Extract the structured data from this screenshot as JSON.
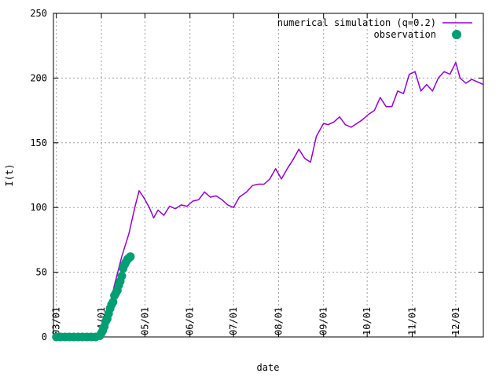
{
  "chart_data": {
    "type": "line",
    "xlabel": "date",
    "ylabel": "I(t)",
    "ylim": [
      0,
      250
    ],
    "xlim": [
      "2020-02-28",
      "2020-12-20"
    ],
    "grid": true,
    "legend_position": "top-right",
    "y_ticks": [
      0,
      50,
      100,
      150,
      200,
      250
    ],
    "x_ticks": [
      {
        "date": "2020-03-01",
        "label": "03/01"
      },
      {
        "date": "2020-04-01",
        "label": "04/01"
      },
      {
        "date": "2020-05-01",
        "label": "05/01"
      },
      {
        "date": "2020-06-01",
        "label": "06/01"
      },
      {
        "date": "2020-07-01",
        "label": "07/01"
      },
      {
        "date": "2020-08-01",
        "label": "08/01"
      },
      {
        "date": "2020-09-01",
        "label": "09/01"
      },
      {
        "date": "2020-10-01",
        "label": "10/01"
      },
      {
        "date": "2020-11-01",
        "label": "11/01"
      },
      {
        "date": "2020-12-01",
        "label": "12/01"
      }
    ],
    "series": [
      {
        "name": "numerical simulation (q=0.2)",
        "style": "line",
        "color": "#9400d3",
        "x": [
          "2020-02-28",
          "2020-03-31",
          "2020-04-05",
          "2020-04-10",
          "2020-04-15",
          "2020-04-20",
          "2020-04-24",
          "2020-04-27",
          "2020-04-30",
          "2020-05-04",
          "2020-05-07",
          "2020-05-10",
          "2020-05-14",
          "2020-05-18",
          "2020-05-22",
          "2020-05-26",
          "2020-05-30",
          "2020-06-03",
          "2020-06-07",
          "2020-06-11",
          "2020-06-15",
          "2020-06-19",
          "2020-06-23",
          "2020-06-27",
          "2020-07-01",
          "2020-07-05",
          "2020-07-10",
          "2020-07-14",
          "2020-07-18",
          "2020-07-22",
          "2020-07-26",
          "2020-07-30",
          "2020-08-03",
          "2020-08-07",
          "2020-08-11",
          "2020-08-15",
          "2020-08-19",
          "2020-08-23",
          "2020-08-27",
          "2020-09-01",
          "2020-09-04",
          "2020-09-08",
          "2020-09-12",
          "2020-09-16",
          "2020-09-20",
          "2020-09-24",
          "2020-09-28",
          "2020-10-02",
          "2020-10-06",
          "2020-10-10",
          "2020-10-14",
          "2020-10-18",
          "2020-10-22",
          "2020-10-26",
          "2020-10-30",
          "2020-11-03",
          "2020-11-07",
          "2020-11-11",
          "2020-11-15",
          "2020-11-19",
          "2020-11-23",
          "2020-11-27",
          "2020-12-01",
          "2020-12-04",
          "2020-12-08",
          "2020-12-12",
          "2020-12-16",
          "2020-12-20"
        ],
        "y": [
          0,
          0,
          15,
          40,
          62,
          80,
          100,
          113,
          108,
          100,
          92,
          98,
          94,
          101,
          99,
          102,
          101,
          105,
          106,
          112,
          108,
          109,
          106,
          102,
          100,
          108,
          112,
          117,
          118,
          118,
          122,
          130,
          122,
          130,
          137,
          145,
          138,
          135,
          155,
          165,
          164,
          166,
          170,
          164,
          162,
          165,
          168,
          172,
          175,
          185,
          178,
          178,
          190,
          188,
          203,
          205,
          190,
          195,
          190,
          200,
          205,
          203,
          212,
          200,
          196,
          199,
          197,
          195
        ]
      },
      {
        "name": "observation",
        "style": "points",
        "color": "#009e73",
        "x": [
          "2020-03-01",
          "2020-03-04",
          "2020-03-07",
          "2020-03-10",
          "2020-03-13",
          "2020-03-16",
          "2020-03-19",
          "2020-03-22",
          "2020-03-25",
          "2020-03-28",
          "2020-03-31",
          "2020-04-01",
          "2020-04-02",
          "2020-04-03",
          "2020-04-04",
          "2020-04-05",
          "2020-04-06",
          "2020-04-07",
          "2020-04-08",
          "2020-04-09",
          "2020-04-10",
          "2020-04-11",
          "2020-04-12",
          "2020-04-13",
          "2020-04-14",
          "2020-04-15",
          "2020-04-16",
          "2020-04-17",
          "2020-04-18",
          "2020-04-19",
          "2020-04-20",
          "2020-04-21"
        ],
        "y": [
          0,
          0,
          0,
          0,
          0,
          0,
          0,
          0,
          0,
          0,
          1,
          3,
          5,
          8,
          12,
          14,
          18,
          22,
          25,
          27,
          32,
          34,
          36,
          40,
          43,
          47,
          53,
          56,
          58,
          60,
          61,
          62
        ]
      }
    ]
  }
}
